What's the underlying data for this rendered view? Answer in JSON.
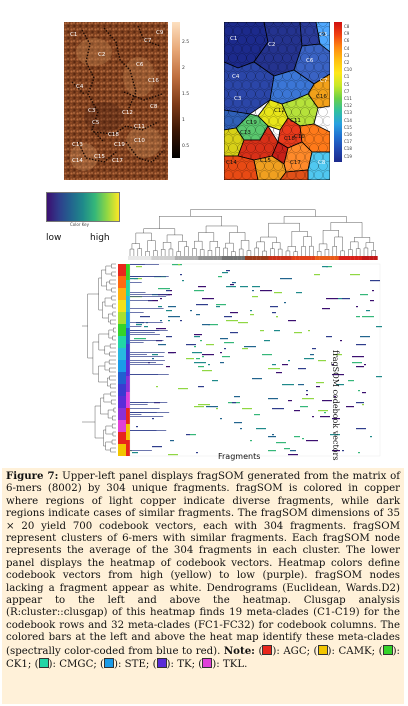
{
  "copper_map": {
    "clusters": [
      "C1",
      "C2",
      "C3",
      "C4",
      "C5",
      "C6",
      "C7",
      "C8",
      "C9",
      "C10",
      "C11",
      "C12",
      "C13",
      "C14",
      "C15",
      "C16",
      "C17",
      "C18",
      "C19"
    ],
    "colorbar_ticks": [
      "2.5",
      "2",
      "1.5",
      "1",
      "0.5"
    ]
  },
  "cluster_map": {
    "clusters": [
      "C1",
      "C2",
      "C3",
      "C4",
      "C5",
      "C6",
      "C7",
      "C8",
      "C9",
      "C10",
      "C11",
      "C12",
      "C13",
      "C14",
      "C15",
      "C16",
      "C17",
      "C18",
      "C19"
    ],
    "colorbar_ticks": [
      "C8",
      "C9",
      "C6",
      "C4",
      "C3",
      "C2",
      "C10",
      "C1",
      "C5",
      "C7",
      "C11",
      "C12",
      "C13",
      "C14",
      "C15",
      "C16",
      "C17",
      "C18",
      "C19"
    ]
  },
  "color_key": {
    "low": "low",
    "high": "high",
    "title": "Color Key",
    "gradient": [
      "#3b0f70",
      "#2f3d8c",
      "#22648e",
      "#1f8a8a",
      "#35b779",
      "#90d743",
      "#fde725"
    ]
  },
  "heatmap": {
    "xlabel": "Fragments",
    "ylabel": "fragSOM codebook vectors"
  },
  "caption": {
    "figure_label": "Figure 7:",
    "text": "Upper-left panel displays fragSOM generated from the matrix of 6-mers (8002) by 304 unique fragments. fragSOM is colored in copper where regions of light copper indicate diverse fragments, while dark regions indicate cases of similar fragments. The fragSOM dimensions of 35 × 20 yield 700 codebook vectors, each with 304 fragments. fragSOM represent clusters of 6-mers with similar fragments. Each fragSOM node represents the average of the 304 fragments in each cluster. The lower panel displays the heatmap of codebook vectors. Heatmap colors define codebook vectors from high (yellow) to low (purple). fragSOM nodes lacking a fragment appear as white. Dendrograms (Euclidean, Wards.D2) appear to the left and above the heatmap. Clusgap analysis (R:cluster::clusgap) of this heatmap finds 19 meta-clades (C1-C19) for the codebook rows and 32 meta-clades (FC1-FC32) for codebook columns. The colored bars at the left and above the heat map identify these meta-clades (spectrally color-coded from blue to red).",
    "note_label": "Note:",
    "note_items": [
      {
        "color": "#e8261c",
        "text": "AGC;"
      },
      {
        "color": "#f2c500",
        "text": "CAMK;"
      },
      {
        "color": "#35d32a",
        "text": "CK1;"
      },
      {
        "color": "#22d6a6",
        "text": "CMGC;"
      },
      {
        "color": "#1a9be8",
        "text": "STE;"
      },
      {
        "color": "#5a2cd8",
        "text": "TK;"
      },
      {
        "color": "#e040d8",
        "text": "TKL."
      }
    ]
  }
}
